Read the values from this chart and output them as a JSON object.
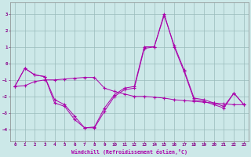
{
  "xlabel": "Windchill (Refroidissement éolien,°C)",
  "background_color": "#cce8e8",
  "line_color": "#aa00aa",
  "grid_color": "#99bbbb",
  "xlim": [
    -0.5,
    23.5
  ],
  "ylim": [
    -4.7,
    3.7
  ],
  "yticks": [
    -4,
    -3,
    -2,
    -1,
    0,
    1,
    2,
    3
  ],
  "xticks": [
    0,
    1,
    2,
    3,
    4,
    5,
    6,
    7,
    8,
    9,
    10,
    11,
    12,
    13,
    14,
    15,
    16,
    17,
    18,
    19,
    20,
    21,
    22,
    23
  ],
  "hours": [
    0,
    1,
    2,
    3,
    4,
    5,
    6,
    7,
    8,
    9,
    10,
    11,
    12,
    13,
    14,
    15,
    16,
    17,
    18,
    19,
    20,
    21,
    22,
    23
  ],
  "line1": [
    -1.4,
    -0.3,
    -0.7,
    -0.8,
    -2.4,
    -2.6,
    -3.4,
    -3.9,
    -3.9,
    -2.9,
    -2.0,
    -1.6,
    -1.5,
    0.9,
    1.0,
    3.0,
    1.0,
    -0.5,
    -2.2,
    -2.3,
    -2.5,
    -2.7,
    -1.8,
    -2.5
  ],
  "line2": [
    -1.4,
    -0.3,
    -0.7,
    -0.8,
    -2.2,
    -2.5,
    -3.2,
    -3.9,
    -3.85,
    -2.7,
    -1.9,
    -1.5,
    -1.4,
    1.0,
    1.0,
    2.9,
    1.1,
    -0.4,
    -2.1,
    -2.2,
    -2.4,
    -2.6,
    -1.8,
    -2.5
  ],
  "line3": [
    -1.4,
    -1.35,
    -1.1,
    -1.0,
    -1.0,
    -0.95,
    -0.9,
    -0.85,
    -0.85,
    -1.5,
    -1.7,
    -1.85,
    -2.0,
    -2.0,
    -2.05,
    -2.1,
    -2.2,
    -2.25,
    -2.3,
    -2.35,
    -2.4,
    -2.45,
    -2.5,
    -2.5
  ]
}
